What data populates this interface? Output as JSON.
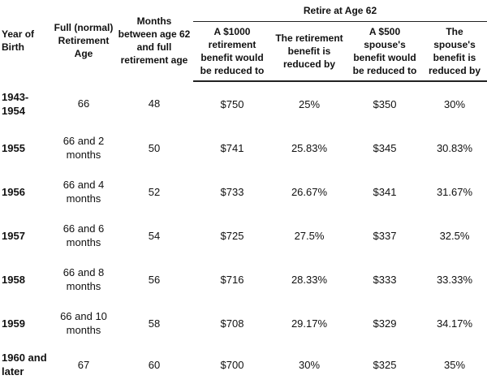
{
  "table": {
    "group_header": "Retire at Age 62",
    "headers": [
      "Year of Birth",
      "Full (normal) Retirement Age",
      "Months between age 62 and full retirement age",
      "A $1000 retirement benefit would be reduced to",
      "The retirement benefit is reduced by",
      "A $500 spouse's benefit would be reduced to",
      "The spouse's benefit is reduced by"
    ],
    "rows": [
      [
        "1943-1954",
        "66",
        "48",
        "$750",
        "25%",
        "$350",
        "30%"
      ],
      [
        "1955",
        "66 and 2 months",
        "50",
        "$741",
        "25.83%",
        "$345",
        "30.83%"
      ],
      [
        "1956",
        "66 and 4 months",
        "52",
        "$733",
        "26.67%",
        "$341",
        "31.67%"
      ],
      [
        "1957",
        "66 and 6 months",
        "54",
        "$725",
        "27.5%",
        "$337",
        "32.5%"
      ],
      [
        "1958",
        "66 and 8 months",
        "56",
        "$716",
        "28.33%",
        "$333",
        "33.33%"
      ],
      [
        "1959",
        "66 and 10 months",
        "58",
        "$708",
        "29.17%",
        "$329",
        "34.17%"
      ],
      [
        "1960 and later",
        "67",
        "60",
        "$700",
        "30%",
        "$325",
        "35%"
      ]
    ]
  }
}
